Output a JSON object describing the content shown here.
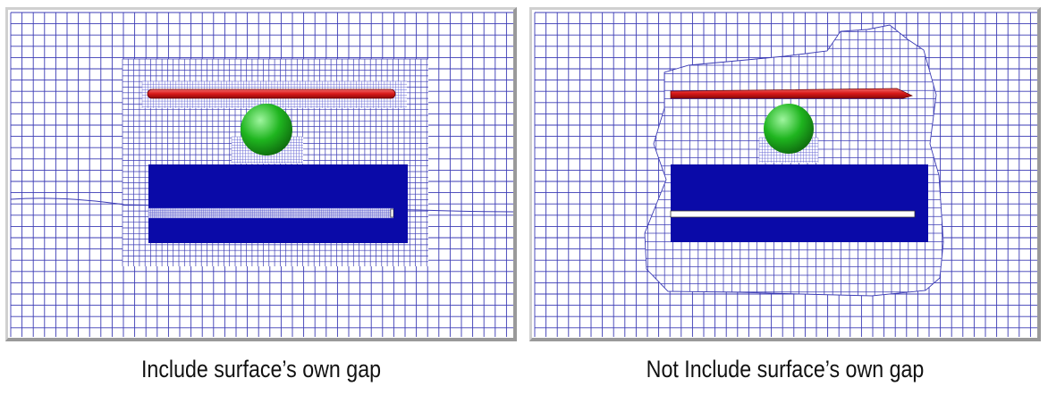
{
  "colors": {
    "mesh": "#3b3bb5",
    "mesh_fine": "#5a5ad0",
    "solid_block": "#0a0aa8",
    "rod": "#d81818",
    "sphere": "#1fb51f",
    "frame_light": "#d0d0d0",
    "frame_dark": "#9a9a9a"
  },
  "panels": [
    {
      "caption": "Include surface’s own gap"
    },
    {
      "caption": "Not Include surface’s own gap"
    }
  ]
}
